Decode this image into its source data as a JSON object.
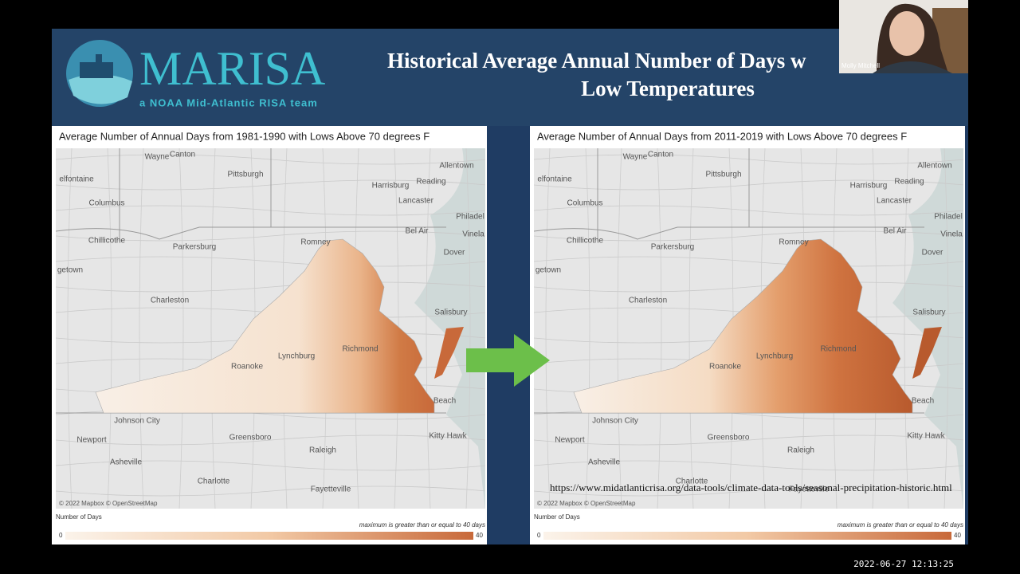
{
  "webcam": {
    "name": "Molly Mitchell"
  },
  "timestamp": "2022-06-27 12:13:25",
  "slide": {
    "logo": {
      "name": "MARISA",
      "tagline": "a NOAA Mid-Atlantic RISA team"
    },
    "title": [
      "Historical Average Annual Number of Days w",
      "Low Temperatures"
    ],
    "url": "https://www.midatlanticrisa.org/data-tools/climate-data-tools/seasonal-precipitation-historic.html",
    "map_labels": [
      "Wayne",
      "Canton",
      "Pittsburgh",
      "Allentown",
      "Reading",
      "Harrisburg",
      "Lancaster",
      "Philadel",
      "Vinela",
      "elfontaine",
      "Columbus",
      "Chillicothe",
      "Parkersburg",
      "getown",
      "Romney",
      "Bel Air",
      "Dover",
      "Charleston",
      "Salisbury",
      "Richmond",
      "Lynchburg",
      "Roanoke",
      "Beach",
      "Johnson City",
      "Newport",
      "Greensboro",
      "Raleigh",
      "Kitty Hawk",
      "Asheville",
      "Charlotte",
      "Fayetteville"
    ],
    "maps": [
      {
        "title": "Average Number of Annual Days from 1981-1990 with Lows Above 70 degrees F",
        "attribution": "© 2022 Mapbox  © OpenStreetMap",
        "legend": {
          "title": "Number of Days",
          "note": "maximum is greater than or equal to 40 days",
          "min": 0,
          "max": 40
        }
      },
      {
        "title": "Average Number of Annual Days from 2011-2019 with Lows Above 70 degrees F",
        "attribution": "© 2022 Mapbox  © OpenStreetMap",
        "legend": {
          "title": "Number of Days",
          "note": "maximum is greater than or equal to 40 days",
          "min": 0,
          "max": 40
        }
      }
    ]
  }
}
